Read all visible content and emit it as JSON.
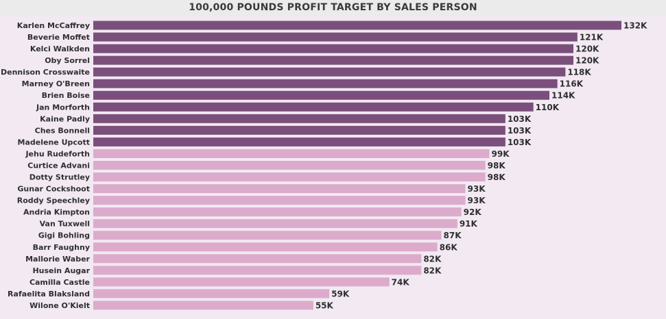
{
  "chart_data": {
    "type": "bar",
    "orientation": "horizontal",
    "title": "100,000 POUNDS PROFIT TARGET BY SALES PERSON",
    "xlabel": "",
    "ylabel": "",
    "xlim": [
      0,
      132000
    ],
    "grid": false,
    "legend": "none",
    "threshold": 100000,
    "colors": {
      "above_target": "#7b4f7b",
      "below_target": "#dcabcb",
      "background": "#f2e9f3",
      "title_bar": "#ebebeb"
    },
    "categories": [
      "Karlen McCaffrey",
      "Beverie Moffet",
      "Kelci Walkden",
      "Oby Sorrel",
      "Dennison Crosswaite",
      "Marney O'Breen",
      "Brien Boise",
      "Jan Morforth",
      "Kaine Padly",
      "Ches Bonnell",
      "Madelene Upcott",
      "Jehu Rudeforth",
      "Curtice Advani",
      "Dotty Strutley",
      "Gunar Cockshoot",
      "Roddy Speechley",
      "Andria Kimpton",
      "Van Tuxwell",
      "Gigi Bohling",
      "Barr Faughny",
      "Mallorie Waber",
      "Husein Augar",
      "Camilla Castle",
      "Rafaelita Blaksland",
      "Wilone O'Kielt"
    ],
    "values": [
      132000,
      121000,
      120000,
      120000,
      118000,
      116000,
      114000,
      110000,
      103000,
      103000,
      103000,
      99000,
      98000,
      98000,
      93000,
      93000,
      92000,
      91000,
      87000,
      86000,
      82000,
      82000,
      74000,
      59000,
      55000
    ],
    "data_labels": [
      "132K",
      "121K",
      "120K",
      "120K",
      "118K",
      "116K",
      "114K",
      "110K",
      "103K",
      "103K",
      "103K",
      "99K",
      "98K",
      "98K",
      "93K",
      "93K",
      "92K",
      "91K",
      "87K",
      "86K",
      "82K",
      "82K",
      "74K",
      "59K",
      "55K"
    ]
  }
}
